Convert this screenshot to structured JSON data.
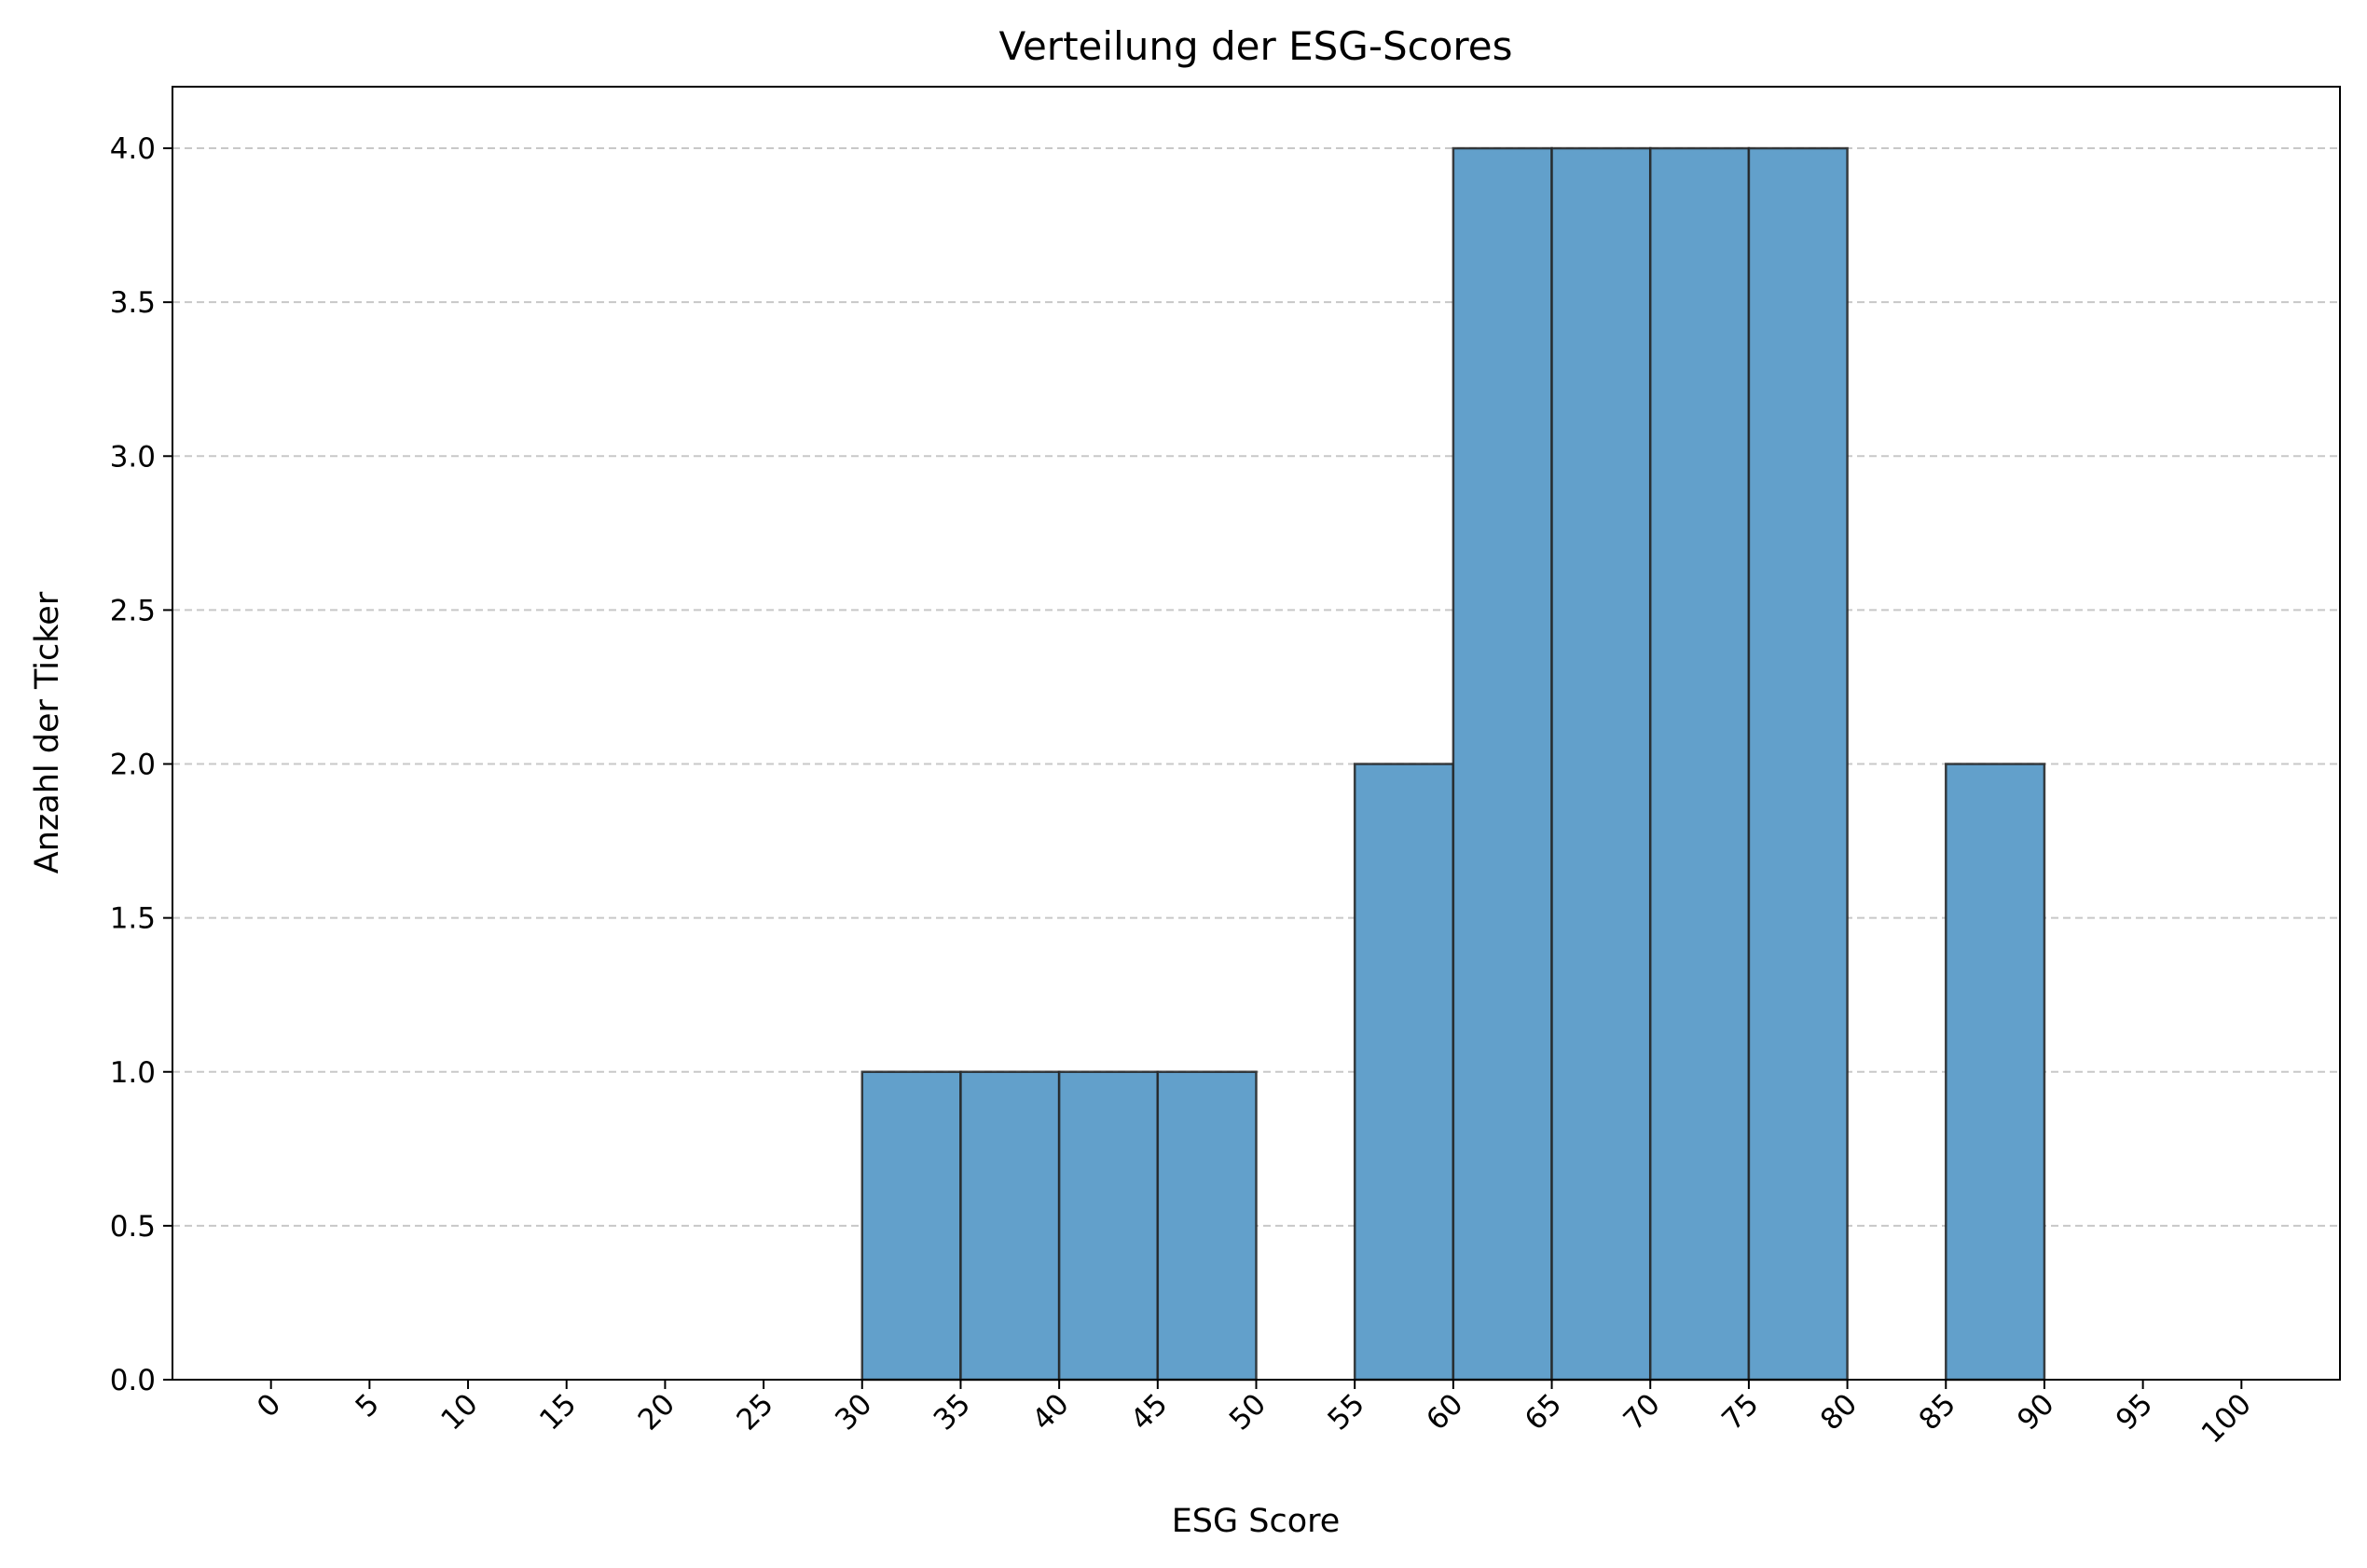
{
  "chart_data": {
    "type": "bar",
    "title": "Verteilung der ESG-Scores",
    "xlabel": "ESG Score",
    "ylabel": "Anzahl der Ticker",
    "bin_edges": [
      0,
      5,
      10,
      15,
      20,
      25,
      30,
      35,
      40,
      45,
      50,
      55,
      60,
      65,
      70,
      75,
      80,
      85,
      90,
      95,
      100
    ],
    "values": [
      0,
      0,
      0,
      0,
      0,
      0,
      1,
      1,
      1,
      1,
      0,
      2,
      4,
      4,
      4,
      4,
      0,
      2,
      0,
      0
    ],
    "x_ticks": [
      "0",
      "5",
      "10",
      "15",
      "20",
      "25",
      "30",
      "35",
      "40",
      "45",
      "50",
      "55",
      "60",
      "65",
      "70",
      "75",
      "80",
      "85",
      "90",
      "95",
      "100"
    ],
    "y_ticks": [
      "0.0",
      "0.5",
      "1.0",
      "1.5",
      "2.0",
      "2.5",
      "3.0",
      "3.5",
      "4.0"
    ],
    "xlim": [
      -5,
      105
    ],
    "ylim": [
      0,
      4.2
    ],
    "grid": "y dashed",
    "colors": {
      "bar_fill": "#62a0cb",
      "bar_edge": "#222222",
      "grid": "#c8c8c8"
    }
  }
}
